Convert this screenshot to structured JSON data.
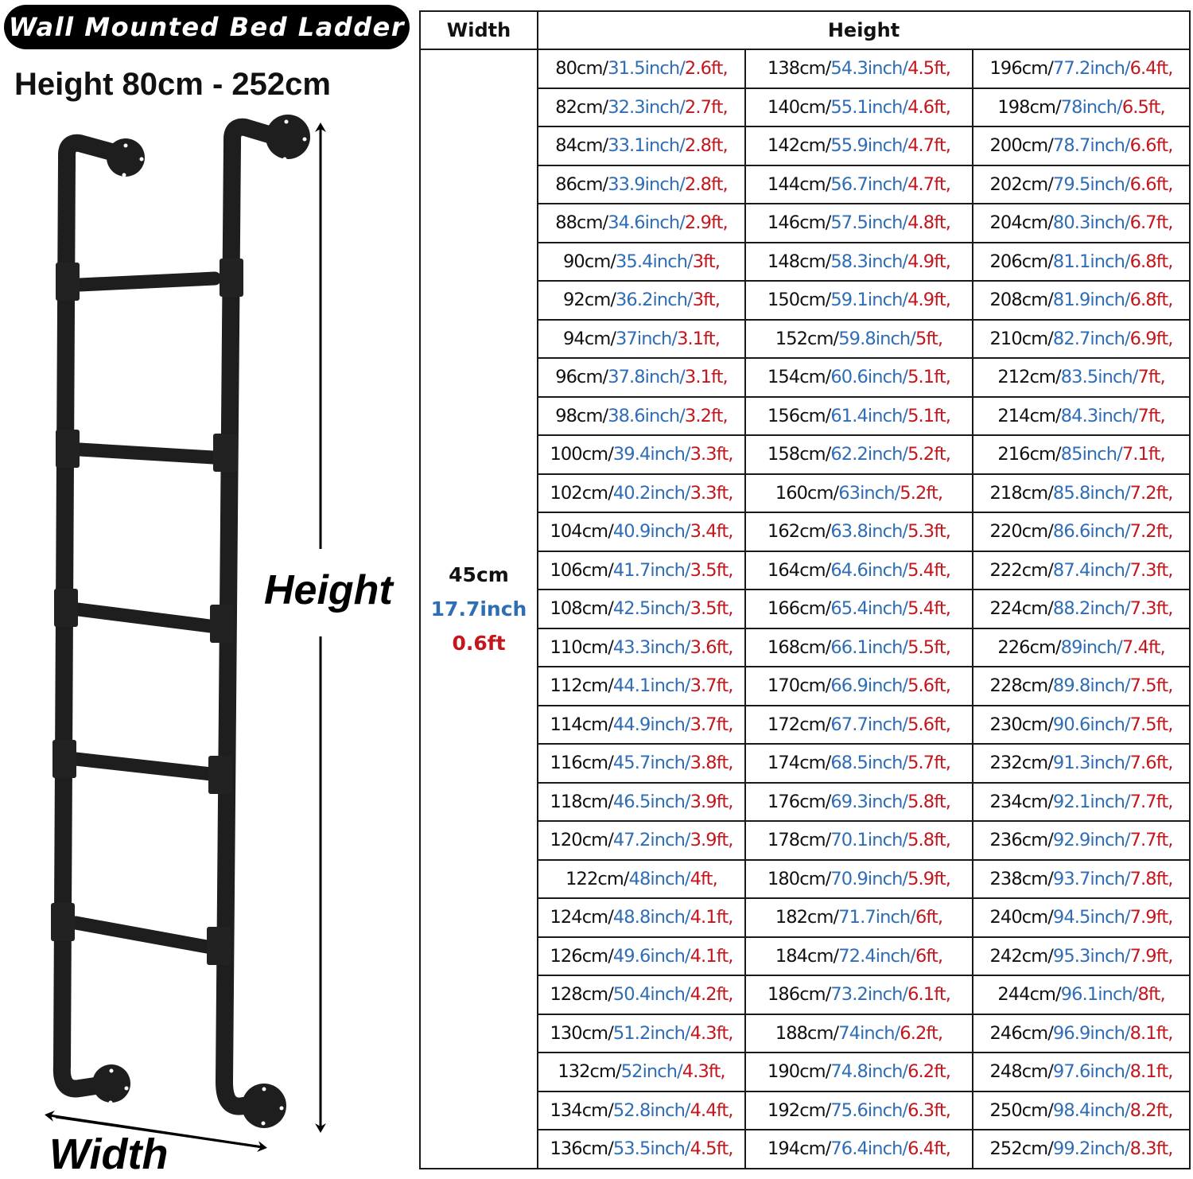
{
  "banner": {
    "title": "Wall Mounted Bed Ladder",
    "height_range": "Height 80cm - 252cm"
  },
  "diagram": {
    "height_label": "Height",
    "width_label": "Width",
    "rungs": 5
  },
  "colors": {
    "cm": "#111111",
    "inch": "#2f6db5",
    "ft": "#c4161c",
    "border": "#1a1a1a"
  },
  "table": {
    "headers": {
      "width": "Width",
      "height": "Height"
    },
    "width_value": {
      "cm": "45cm",
      "inch": "17.7inch",
      "ft": "0.6ft"
    },
    "rows": [
      [
        [
          "80cm/",
          "31.5inch/",
          "2.6ft,"
        ],
        [
          "138cm/",
          "54.3inch/",
          "4.5ft,"
        ],
        [
          "196cm/",
          "77.2inch/",
          "6.4ft,"
        ]
      ],
      [
        [
          "82cm/",
          "32.3inch/",
          "2.7ft,"
        ],
        [
          "140cm/",
          "55.1inch/",
          "4.6ft,"
        ],
        [
          "198cm/",
          "78inch/",
          "6.5ft,"
        ]
      ],
      [
        [
          "84cm/",
          "33.1inch/",
          "2.8ft,"
        ],
        [
          "142cm/",
          "55.9inch/",
          "4.7ft,"
        ],
        [
          "200cm/",
          "78.7inch/",
          "6.6ft,"
        ]
      ],
      [
        [
          "86cm/",
          "33.9inch/",
          "2.8ft,"
        ],
        [
          "144cm/",
          "56.7inch/",
          "4.7ft,"
        ],
        [
          "202cm/",
          "79.5inch/",
          "6.6ft,"
        ]
      ],
      [
        [
          "88cm/",
          "34.6inch/",
          "2.9ft,"
        ],
        [
          "146cm/",
          "57.5inch/",
          "4.8ft,"
        ],
        [
          "204cm/",
          "80.3inch/",
          "6.7ft,"
        ]
      ],
      [
        [
          "90cm/",
          "35.4inch/",
          "3ft,"
        ],
        [
          "148cm/",
          "58.3inch/",
          "4.9ft,"
        ],
        [
          "206cm/",
          "81.1inch/",
          "6.8ft,"
        ]
      ],
      [
        [
          "92cm/",
          "36.2inch/",
          "3ft,"
        ],
        [
          "150cm/",
          "59.1inch/",
          "4.9ft,"
        ],
        [
          "208cm/",
          "81.9inch/",
          "6.8ft,"
        ]
      ],
      [
        [
          "94cm/",
          "37inch/",
          "3.1ft,"
        ],
        [
          "152cm/",
          "59.8inch/",
          "5ft,"
        ],
        [
          "210cm/",
          "82.7inch/",
          "6.9ft,"
        ]
      ],
      [
        [
          "96cm/",
          "37.8inch/",
          "3.1ft,"
        ],
        [
          "154cm/",
          "60.6inch/",
          "5.1ft,"
        ],
        [
          "212cm/",
          "83.5inch/",
          "7ft,"
        ]
      ],
      [
        [
          "98cm/",
          "38.6inch/",
          "3.2ft,"
        ],
        [
          "156cm/",
          "61.4inch/",
          "5.1ft,"
        ],
        [
          "214cm/",
          "84.3inch/",
          "7ft,"
        ]
      ],
      [
        [
          "100cm/",
          "39.4inch/",
          "3.3ft,"
        ],
        [
          "158cm/",
          "62.2inch/",
          "5.2ft,"
        ],
        [
          "216cm/",
          "85inch/",
          "7.1ft,"
        ]
      ],
      [
        [
          "102cm/",
          "40.2inch/",
          "3.3ft,"
        ],
        [
          "160cm/",
          "63inch/",
          "5.2ft,"
        ],
        [
          "218cm/",
          "85.8inch/",
          "7.2ft,"
        ]
      ],
      [
        [
          "104cm/",
          "40.9inch/",
          "3.4ft,"
        ],
        [
          "162cm/",
          "63.8inch/",
          "5.3ft,"
        ],
        [
          "220cm/",
          "86.6inch/",
          "7.2ft,"
        ]
      ],
      [
        [
          "106cm/",
          "41.7inch/",
          "3.5ft,"
        ],
        [
          "164cm/",
          "64.6inch/",
          "5.4ft,"
        ],
        [
          "222cm/",
          "87.4inch/",
          "7.3ft,"
        ]
      ],
      [
        [
          "108cm/",
          "42.5inch/",
          "3.5ft,"
        ],
        [
          "166cm/",
          "65.4inch/",
          "5.4ft,"
        ],
        [
          "224cm/",
          "88.2inch/",
          "7.3ft,"
        ]
      ],
      [
        [
          "110cm/",
          "43.3inch/",
          "3.6ft,"
        ],
        [
          "168cm/",
          "66.1inch/",
          "5.5ft,"
        ],
        [
          "226cm/",
          "89inch/",
          "7.4ft,"
        ]
      ],
      [
        [
          "112cm/",
          "44.1inch/",
          "3.7ft,"
        ],
        [
          "170cm/",
          "66.9inch/",
          "5.6ft,"
        ],
        [
          "228cm/",
          "89.8inch/",
          "7.5ft,"
        ]
      ],
      [
        [
          "114cm/",
          "44.9inch/",
          "3.7ft,"
        ],
        [
          "172cm/",
          "67.7inch/",
          "5.6ft,"
        ],
        [
          "230cm/",
          "90.6inch/",
          "7.5ft,"
        ]
      ],
      [
        [
          "116cm/",
          "45.7inch/",
          "3.8ft,"
        ],
        [
          "174cm/",
          "68.5inch/",
          "5.7ft,"
        ],
        [
          "232cm/",
          "91.3inch/",
          "7.6ft,"
        ]
      ],
      [
        [
          "118cm/",
          "46.5inch/",
          "3.9ft,"
        ],
        [
          "176cm/",
          "69.3inch/",
          "5.8ft,"
        ],
        [
          "234cm/",
          "92.1inch/",
          "7.7ft,"
        ]
      ],
      [
        [
          "120cm/",
          "47.2inch/",
          "3.9ft,"
        ],
        [
          "178cm/",
          "70.1inch/",
          "5.8ft,"
        ],
        [
          "236cm/",
          "92.9inch/",
          "7.7ft,"
        ]
      ],
      [
        [
          "122cm/",
          "48inch/",
          "4ft,"
        ],
        [
          "180cm/",
          "70.9inch/",
          "5.9ft,"
        ],
        [
          "238cm/",
          "93.7inch/",
          "7.8ft,"
        ]
      ],
      [
        [
          "124cm/",
          "48.8inch/",
          "4.1ft,"
        ],
        [
          "182cm/",
          "71.7inch/",
          "6ft,"
        ],
        [
          "240cm/",
          "94.5inch/",
          "7.9ft,"
        ]
      ],
      [
        [
          "126cm/",
          "49.6inch/",
          "4.1ft,"
        ],
        [
          "184cm/",
          "72.4inch/",
          "6ft,"
        ],
        [
          "242cm/",
          "95.3inch/",
          "7.9ft,"
        ]
      ],
      [
        [
          "128cm/",
          "50.4inch/",
          "4.2ft,"
        ],
        [
          "186cm/",
          "73.2inch/",
          "6.1ft,"
        ],
        [
          "244cm/",
          "96.1inch/",
          "8ft,"
        ]
      ],
      [
        [
          "130cm/",
          "51.2inch/",
          "4.3ft,"
        ],
        [
          "188cm/",
          "74inch/",
          "6.2ft,"
        ],
        [
          "246cm/",
          "96.9inch/",
          "8.1ft,"
        ]
      ],
      [
        [
          "132cm/",
          "52inch/",
          "4.3ft,"
        ],
        [
          "190cm/",
          "74.8inch/",
          "6.2ft,"
        ],
        [
          "248cm/",
          "97.6inch/",
          "8.1ft,"
        ]
      ],
      [
        [
          "134cm/",
          "52.8inch/",
          "4.4ft,"
        ],
        [
          "192cm/",
          "75.6inch/",
          "6.3ft,"
        ],
        [
          "250cm/",
          "98.4inch/",
          "8.2ft,"
        ]
      ],
      [
        [
          "136cm/",
          "53.5inch/",
          "4.5ft,"
        ],
        [
          "194cm/",
          "76.4inch/",
          "6.4ft,"
        ],
        [
          "252cm/",
          "99.2inch/",
          "8.3ft,"
        ]
      ]
    ]
  }
}
